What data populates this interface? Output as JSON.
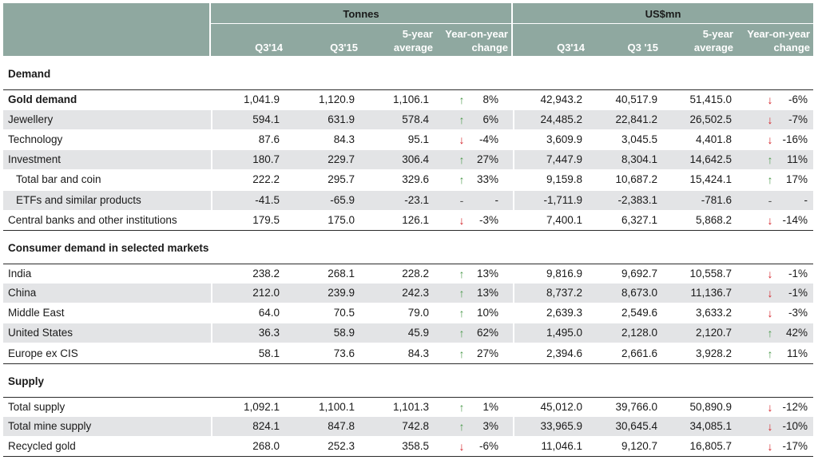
{
  "header": {
    "tonnes_label": "Tonnes",
    "usd_label": "US$mn",
    "tonnes_cols": [
      "Q3'14",
      "Q3'15",
      "5-year average",
      "Year-on-year change"
    ],
    "usd_cols": [
      "Q3'14",
      "Q3 '15",
      "5-year average",
      "Year-on-year change"
    ]
  },
  "colors": {
    "header_bg": "#8fa8a0",
    "shaded_row": "#e3e4e6",
    "up_arrow": "#4c9a4c",
    "down_arrow": "#d31f26"
  },
  "sections": [
    {
      "title": "Demand",
      "rows": [
        {
          "label": "Gold demand",
          "bold": true,
          "indent": false,
          "t": [
            "1,041.9",
            "1,120.9",
            "1,106.1"
          ],
          "t_dir": "up",
          "t_chg": "8%",
          "u": [
            "42,943.2",
            "40,517.9",
            "51,415.0"
          ],
          "u_dir": "down",
          "u_chg": "-6%"
        },
        {
          "label": "Jewellery",
          "bold": false,
          "indent": false,
          "t": [
            "594.1",
            "631.9",
            "578.4"
          ],
          "t_dir": "up",
          "t_chg": "6%",
          "u": [
            "24,485.2",
            "22,841.2",
            "26,502.5"
          ],
          "u_dir": "down",
          "u_chg": "-7%"
        },
        {
          "label": "Technology",
          "bold": false,
          "indent": false,
          "t": [
            "87.6",
            "84.3",
            "95.1"
          ],
          "t_dir": "down",
          "t_chg": "-4%",
          "u": [
            "3,609.9",
            "3,045.5",
            "4,401.8"
          ],
          "u_dir": "down",
          "u_chg": "-16%"
        },
        {
          "label": "Investment",
          "bold": false,
          "indent": false,
          "t": [
            "180.7",
            "229.7",
            "306.4"
          ],
          "t_dir": "up",
          "t_chg": "27%",
          "u": [
            "7,447.9",
            "8,304.1",
            "14,642.5"
          ],
          "u_dir": "up",
          "u_chg": "11%"
        },
        {
          "label": "Total bar and coin",
          "bold": false,
          "indent": true,
          "t": [
            "222.2",
            "295.7",
            "329.6"
          ],
          "t_dir": "up",
          "t_chg": "33%",
          "u": [
            "9,159.8",
            "10,687.2",
            "15,424.1"
          ],
          "u_dir": "up",
          "u_chg": "17%"
        },
        {
          "label": "ETFs and similar products",
          "bold": false,
          "indent": true,
          "t": [
            "-41.5",
            "-65.9",
            "-23.1"
          ],
          "t_dir": "dash",
          "t_chg": "-",
          "u": [
            "-1,711.9",
            "-2,383.1",
            "-781.6"
          ],
          "u_dir": "dash",
          "u_chg": "-"
        },
        {
          "label": "Central banks and other institutions",
          "bold": false,
          "indent": false,
          "t": [
            "179.5",
            "175.0",
            "126.1"
          ],
          "t_dir": "down",
          "t_chg": "-3%",
          "u": [
            "7,400.1",
            "6,327.1",
            "5,868.2"
          ],
          "u_dir": "down",
          "u_chg": "-14%"
        }
      ]
    },
    {
      "title": "Consumer demand in selected markets",
      "rows": [
        {
          "label": "India",
          "bold": false,
          "indent": false,
          "t": [
            "238.2",
            "268.1",
            "228.2"
          ],
          "t_dir": "up",
          "t_chg": "13%",
          "u": [
            "9,816.9",
            "9,692.7",
            "10,558.7"
          ],
          "u_dir": "down",
          "u_chg": "-1%"
        },
        {
          "label": "China",
          "bold": false,
          "indent": false,
          "t": [
            "212.0",
            "239.9",
            "242.3"
          ],
          "t_dir": "up",
          "t_chg": "13%",
          "u": [
            "8,737.2",
            "8,673.0",
            "11,136.7"
          ],
          "u_dir": "down",
          "u_chg": "-1%"
        },
        {
          "label": "Middle East",
          "bold": false,
          "indent": false,
          "t": [
            "64.0",
            "70.5",
            "79.0"
          ],
          "t_dir": "up",
          "t_chg": "10%",
          "u": [
            "2,639.3",
            "2,549.6",
            "3,633.2"
          ],
          "u_dir": "down",
          "u_chg": "-3%"
        },
        {
          "label": "United States",
          "bold": false,
          "indent": false,
          "t": [
            "36.3",
            "58.9",
            "45.9"
          ],
          "t_dir": "up",
          "t_chg": "62%",
          "u": [
            "1,495.0",
            "2,128.0",
            "2,120.7"
          ],
          "u_dir": "up",
          "u_chg": "42%"
        },
        {
          "label": "Europe ex CIS",
          "bold": false,
          "indent": false,
          "t": [
            "58.1",
            "73.6",
            "84.3"
          ],
          "t_dir": "up",
          "t_chg": "27%",
          "u": [
            "2,394.6",
            "2,661.6",
            "3,928.2"
          ],
          "u_dir": "up",
          "u_chg": "11%"
        }
      ]
    },
    {
      "title": "Supply",
      "rows": [
        {
          "label": "Total supply",
          "bold": false,
          "indent": false,
          "t": [
            "1,092.1",
            "1,100.1",
            "1,101.3"
          ],
          "t_dir": "up",
          "t_chg": "1%",
          "u": [
            "45,012.0",
            "39,766.0",
            "50,890.9"
          ],
          "u_dir": "down",
          "u_chg": "-12%"
        },
        {
          "label": "Total mine supply",
          "bold": false,
          "indent": false,
          "t": [
            "824.1",
            "847.8",
            "742.8"
          ],
          "t_dir": "up",
          "t_chg": "3%",
          "u": [
            "33,965.9",
            "30,645.4",
            "34,085.1"
          ],
          "u_dir": "down",
          "u_chg": "-10%"
        },
        {
          "label": "Recycled gold",
          "bold": false,
          "indent": false,
          "t": [
            "268.0",
            "252.3",
            "358.5"
          ],
          "t_dir": "down",
          "t_chg": "-6%",
          "u": [
            "11,046.1",
            "9,120.7",
            "16,805.7"
          ],
          "u_dir": "down",
          "u_chg": "-17%"
        }
      ]
    }
  ]
}
